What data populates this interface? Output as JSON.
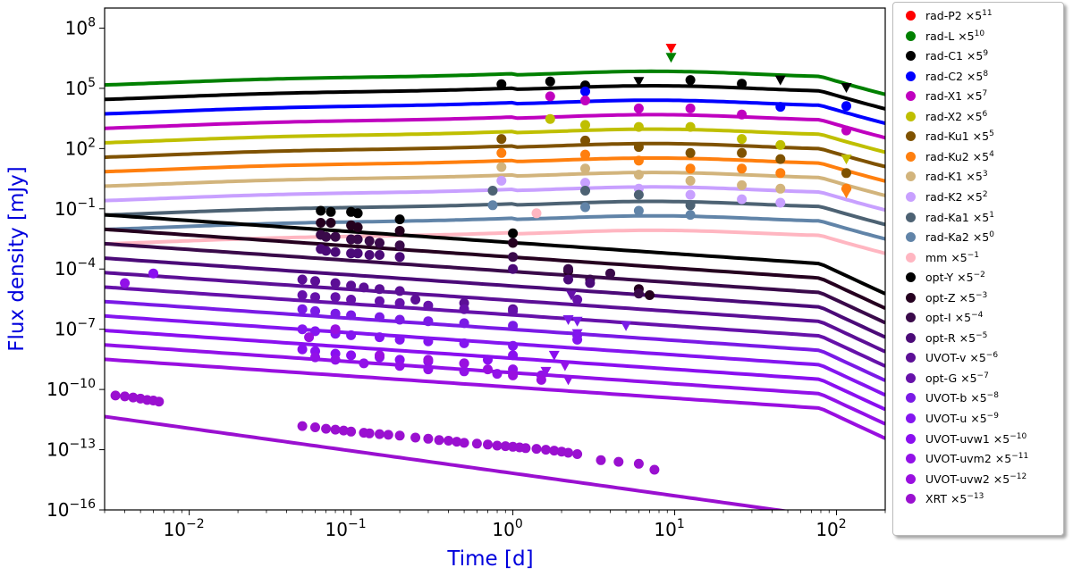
{
  "chart_data": {
    "type": "scatter",
    "xlabel": "Time [d]",
    "ylabel": "Flux density [mJy]",
    "xscale": "log",
    "yscale": "log",
    "xlim": [
      0.003,
      200
    ],
    "ylim": [
      1e-16,
      1000000000.0
    ],
    "xticks": [
      {
        "value": 0.01,
        "mant": "10",
        "exp": "−2"
      },
      {
        "value": 0.1,
        "mant": "10",
        "exp": "−1"
      },
      {
        "value": 1,
        "mant": "10",
        "exp": "0"
      },
      {
        "value": 10,
        "mant": "10",
        "exp": "1"
      },
      {
        "value": 100,
        "mant": "10",
        "exp": "2"
      }
    ],
    "yticks": [
      {
        "value": 1e-16,
        "mant": "10",
        "exp": "−16"
      },
      {
        "value": 1e-13,
        "mant": "10",
        "exp": "−13"
      },
      {
        "value": 1e-10,
        "mant": "10",
        "exp": "−10"
      },
      {
        "value": 1e-07,
        "mant": "10",
        "exp": "−7"
      },
      {
        "value": 0.0001,
        "mant": "10",
        "exp": "−4"
      },
      {
        "value": 0.1,
        "mant": "10",
        "exp": "−1"
      },
      {
        "value": 100,
        "mant": "10",
        "exp": "2"
      },
      {
        "value": 100000,
        "mant": "10",
        "exp": "5"
      },
      {
        "value": 100000000,
        "mant": "10",
        "exp": "8"
      }
    ],
    "legend_position": "outside-right",
    "series": [
      {
        "name": "rad-P2",
        "factor": "5",
        "exp": "11",
        "color": "#ff0000",
        "model": false,
        "points": [],
        "upper_limits": [
          [
            9.5,
            10000000.0
          ]
        ]
      },
      {
        "name": "rad-L",
        "factor": "5",
        "exp": "10",
        "color": "#008000",
        "model": true,
        "points": [],
        "upper_limits": [
          [
            9.5,
            3500000.0
          ]
        ]
      },
      {
        "name": "rad-C1",
        "factor": "5",
        "exp": "9",
        "color": "#000000",
        "model": true,
        "points": [
          [
            0.85,
            160000.0
          ],
          [
            1.7,
            220000.0
          ],
          [
            2.8,
            140000.0
          ],
          [
            12.5,
            260000.0
          ],
          [
            26,
            170000.0
          ]
        ],
        "upper_limits": [
          [
            6,
            220000.0
          ],
          [
            45,
            260000.0
          ],
          [
            115,
            110000.0
          ]
        ]
      },
      {
        "name": "rad-C2",
        "factor": "5",
        "exp": "8",
        "color": "#0000ff",
        "model": true,
        "points": [
          [
            2.8,
            70000.0
          ],
          [
            45,
            12000.0
          ],
          [
            115,
            13000.0
          ]
        ],
        "upper_limits": []
      },
      {
        "name": "rad-X1",
        "factor": "5",
        "exp": "7",
        "color": "#bf00bf",
        "model": true,
        "points": [
          [
            1.7,
            40000.0
          ],
          [
            2.8,
            25000.0
          ],
          [
            6,
            10000.0
          ],
          [
            12.5,
            10000.0
          ],
          [
            26,
            5000.0
          ],
          [
            115,
            800.0
          ]
        ],
        "upper_limits": []
      },
      {
        "name": "rad-X2",
        "factor": "5",
        "exp": "6",
        "color": "#bfbf00",
        "model": true,
        "points": [
          [
            1.7,
            3000.0
          ],
          [
            2.8,
            1500.0
          ],
          [
            6,
            1200.0
          ],
          [
            12.5,
            1200.0
          ],
          [
            26,
            300.0
          ],
          [
            45,
            150.0
          ]
        ],
        "upper_limits": [
          [
            115,
            30.0
          ]
        ]
      },
      {
        "name": "rad-Ku1",
        "factor": "5",
        "exp": "5",
        "color": "#7f5200",
        "model": true,
        "points": [
          [
            0.85,
            300.0
          ],
          [
            2.8,
            250.0
          ],
          [
            6,
            120.0
          ],
          [
            12.5,
            60.0
          ],
          [
            26,
            60.0
          ],
          [
            45,
            30.0
          ],
          [
            115,
            6
          ]
        ],
        "upper_limits": []
      },
      {
        "name": "rad-Ku2",
        "factor": "5",
        "exp": "4",
        "color": "#ff7f0e",
        "model": true,
        "points": [
          [
            0.85,
            60.0
          ],
          [
            2.8,
            50.0
          ],
          [
            6,
            25.0
          ],
          [
            12.5,
            10.0
          ],
          [
            26,
            10.0
          ],
          [
            45,
            6
          ],
          [
            115,
            1
          ]
        ],
        "upper_limits": [
          [
            115,
            0.6
          ]
        ]
      },
      {
        "name": "rad-K1",
        "factor": "5",
        "exp": "3",
        "color": "#d2b47c",
        "model": true,
        "points": [
          [
            0.85,
            12.0
          ],
          [
            2.8,
            10.0
          ],
          [
            6,
            5
          ],
          [
            12.5,
            2.5
          ],
          [
            26,
            1.5
          ],
          [
            45,
            1
          ]
        ],
        "upper_limits": []
      },
      {
        "name": "rad-K2",
        "factor": "5",
        "exp": "2",
        "color": "#c8a0ff",
        "model": true,
        "points": [
          [
            0.85,
            2.5
          ],
          [
            2.8,
            2
          ],
          [
            6,
            1
          ],
          [
            12.5,
            0.5
          ],
          [
            26,
            0.3
          ],
          [
            45,
            0.2
          ]
        ],
        "upper_limits": []
      },
      {
        "name": "rad-Ka1",
        "factor": "5",
        "exp": "1",
        "color": "#4d6273",
        "model": true,
        "points": [
          [
            0.75,
            0.8
          ],
          [
            2.8,
            0.8
          ],
          [
            6,
            0.5
          ],
          [
            12.5,
            0.15
          ]
        ],
        "upper_limits": []
      },
      {
        "name": "rad-Ka2",
        "factor": "5",
        "exp": "0",
        "color": "#6184a8",
        "model": true,
        "points": [
          [
            0.75,
            0.15
          ],
          [
            2.8,
            0.12
          ],
          [
            6,
            0.08
          ],
          [
            12.5,
            0.05
          ]
        ],
        "upper_limits": []
      },
      {
        "name": "mm",
        "factor": "5",
        "exp": "−1",
        "color": "#ffb6c1",
        "model": true,
        "points": [
          [
            1.4,
            0.06
          ]
        ],
        "upper_limits": []
      },
      {
        "name": "opt-Y",
        "factor": "5",
        "exp": "−2",
        "color": "#000000",
        "model": true,
        "points": [
          [
            0.065,
            0.08
          ],
          [
            0.075,
            0.07
          ],
          [
            0.1,
            0.07
          ],
          [
            0.11,
            0.06
          ],
          [
            0.2,
            0.03
          ],
          [
            1.0,
            0.006
          ]
        ],
        "upper_limits": []
      },
      {
        "name": "opt-Z",
        "factor": "5",
        "exp": "−3",
        "color": "#25001f",
        "model": true,
        "points": [
          [
            0.065,
            0.02
          ],
          [
            0.075,
            0.02
          ],
          [
            0.1,
            0.015
          ],
          [
            0.11,
            0.012
          ],
          [
            0.2,
            0.008
          ],
          [
            1.0,
            0.002
          ],
          [
            2.2,
            8e-05
          ],
          [
            6,
            1e-05
          ],
          [
            7,
            5e-06
          ]
        ],
        "upper_limits": []
      },
      {
        "name": "opt-I",
        "factor": "5",
        "exp": "−4",
        "color": "#3a0a4a",
        "model": true,
        "points": [
          [
            0.065,
            0.005
          ],
          [
            0.07,
            0.004
          ],
          [
            0.08,
            0.004
          ],
          [
            0.1,
            0.003
          ],
          [
            0.11,
            0.003
          ],
          [
            0.13,
            0.0025
          ],
          [
            0.15,
            0.002
          ],
          [
            0.2,
            0.0015
          ],
          [
            1.0,
            0.0004
          ],
          [
            2.2,
            0.0001
          ],
          [
            3,
            3e-05
          ],
          [
            4,
            6e-05
          ],
          [
            6,
            6e-06
          ]
        ],
        "upper_limits": []
      },
      {
        "name": "opt-R",
        "factor": "5",
        "exp": "−5",
        "color": "#4b0a78",
        "model": true,
        "points": [
          [
            0.065,
            0.001
          ],
          [
            0.07,
            0.0008
          ],
          [
            0.08,
            0.0007
          ],
          [
            0.1,
            0.0006
          ],
          [
            0.11,
            0.0006
          ],
          [
            0.13,
            0.0005
          ],
          [
            0.15,
            0.0005
          ],
          [
            0.2,
            0.0004
          ],
          [
            1.0,
            0.0001
          ],
          [
            2.2,
            3e-05
          ],
          [
            3,
            2e-05
          ]
        ],
        "upper_limits": []
      },
      {
        "name": "UVOT-v",
        "factor": "5",
        "exp": "−6",
        "color": "#5c0f96",
        "model": true,
        "points": [
          [
            0.05,
            3e-05
          ],
          [
            0.06,
            2.5e-05
          ],
          [
            0.08,
            2e-05
          ],
          [
            0.1,
            1.5e-05
          ],
          [
            0.12,
            1.2e-05
          ],
          [
            0.15,
            1e-05
          ],
          [
            0.2,
            8e-06
          ],
          [
            0.25,
            3e-06
          ],
          [
            0.5,
            2e-06
          ],
          [
            1.0,
            1e-06
          ]
        ],
        "upper_limits": []
      },
      {
        "name": "opt-G",
        "factor": "5",
        "exp": "−7",
        "color": "#6611aa",
        "model": true,
        "points": [
          [
            0.05,
            5e-06
          ],
          [
            0.06,
            4e-06
          ],
          [
            0.08,
            4e-06
          ],
          [
            0.1,
            3e-06
          ],
          [
            0.15,
            2.5e-06
          ],
          [
            0.2,
            2e-06
          ],
          [
            0.3,
            1.5e-06
          ],
          [
            0.5,
            1e-06
          ],
          [
            1.0,
            8e-07
          ],
          [
            2.5,
            3e-06
          ]
        ],
        "upper_limits": [
          [
            2.3,
            5e-06
          ]
        ]
      },
      {
        "name": "UVOT-b",
        "factor": "5",
        "exp": "−8",
        "color": "#7a1ae6",
        "model": true,
        "points": [
          [
            0.05,
            1e-06
          ],
          [
            0.06,
            8e-07
          ],
          [
            0.08,
            6e-07
          ],
          [
            0.1,
            5e-07
          ],
          [
            0.15,
            4e-07
          ],
          [
            0.2,
            3e-07
          ],
          [
            0.3,
            2.5e-07
          ],
          [
            0.5,
            2e-07
          ],
          [
            1.0,
            1.5e-07
          ],
          [
            2.5,
            5e-08
          ]
        ],
        "upper_limits": [
          [
            2.2,
            3e-07
          ],
          [
            2.5,
            2.5e-07
          ],
          [
            5,
            1.5e-07
          ]
        ]
      },
      {
        "name": "UVOT-u",
        "factor": "5",
        "exp": "−9",
        "color": "#8415f0",
        "model": true,
        "points": [
          [
            0.05,
            1e-07
          ],
          [
            0.06,
            8e-08
          ],
          [
            0.08,
            6e-08
          ],
          [
            0.1,
            5e-08
          ],
          [
            0.15,
            4e-08
          ],
          [
            0.2,
            3e-08
          ],
          [
            0.3,
            2.5e-08
          ],
          [
            0.5,
            2e-08
          ],
          [
            1.0,
            1.5e-08
          ],
          [
            2.5,
            3e-08
          ]
        ],
        "upper_limits": [
          [
            2.5,
            6e-08
          ]
        ]
      },
      {
        "name": "UVOT-uvw1",
        "factor": "5",
        "exp": "−10",
        "color": "#8a0ff0",
        "model": true,
        "points": [
          [
            0.006,
            6e-05
          ],
          [
            0.05,
            1e-08
          ],
          [
            0.06,
            8e-09
          ],
          [
            0.08,
            6e-09
          ],
          [
            0.1,
            5e-09
          ],
          [
            0.15,
            4e-09
          ],
          [
            0.2,
            3e-09
          ],
          [
            0.3,
            2.5e-09
          ],
          [
            0.5,
            2e-09
          ],
          [
            0.7,
            3e-09
          ],
          [
            1.0,
            5e-09
          ]
        ],
        "upper_limits": [
          [
            1.8,
            5e-09
          ]
        ]
      },
      {
        "name": "UVOT-uvm2",
        "factor": "5",
        "exp": "−11",
        "color": "#9211e8",
        "model": true,
        "points": [
          [
            0.004,
            2e-05
          ],
          [
            0.06,
            4e-09
          ],
          [
            0.08,
            3e-09
          ],
          [
            0.12,
            2e-09
          ],
          [
            0.2,
            1.5e-09
          ],
          [
            0.3,
            1e-09
          ],
          [
            0.5,
            8e-10
          ],
          [
            0.8,
            6e-10
          ],
          [
            1.0,
            1e-09
          ],
          [
            1.5,
            5e-10
          ]
        ],
        "upper_limits": [
          [
            1.6,
            8e-10
          ],
          [
            2.1,
            1.5e-09
          ],
          [
            2.2,
            3e-10
          ]
        ]
      },
      {
        "name": "UVOT-uvw2",
        "factor": "5",
        "exp": "−12",
        "color": "#990fe0",
        "model": true,
        "points": [
          [
            0.055,
            4e-08
          ],
          [
            0.08,
            1e-07
          ],
          [
            0.15,
            5e-09
          ],
          [
            0.3,
            3e-09
          ],
          [
            0.5,
            2e-09
          ],
          [
            0.7,
            1e-09
          ],
          [
            1.0,
            5e-10
          ],
          [
            1.5,
            3e-10
          ]
        ],
        "upper_limits": []
      },
      {
        "name": "XRT",
        "factor": "5",
        "exp": "−13",
        "color": "#9a10d0",
        "model": true,
        "points": [
          [
            0.0035,
            5e-11
          ],
          [
            0.004,
            4.5e-11
          ],
          [
            0.0045,
            4e-11
          ],
          [
            0.005,
            3.5e-11
          ],
          [
            0.0055,
            3e-11
          ],
          [
            0.006,
            2.8e-11
          ],
          [
            0.0065,
            2.5e-11
          ],
          [
            0.05,
            1.5e-12
          ],
          [
            0.06,
            1.3e-12
          ],
          [
            0.07,
            1.1e-12
          ],
          [
            0.08,
            1e-12
          ],
          [
            0.09,
            9e-13
          ],
          [
            0.1,
            8e-13
          ],
          [
            0.12,
            7e-13
          ],
          [
            0.13,
            6.5e-13
          ],
          [
            0.15,
            6e-13
          ],
          [
            0.17,
            5.5e-13
          ],
          [
            0.2,
            5e-13
          ],
          [
            0.25,
            4e-13
          ],
          [
            0.3,
            3.5e-13
          ],
          [
            0.35,
            3e-13
          ],
          [
            0.4,
            2.8e-13
          ],
          [
            0.45,
            2.5e-13
          ],
          [
            0.5,
            2.2e-13
          ],
          [
            0.6,
            2e-13
          ],
          [
            0.7,
            1.8e-13
          ],
          [
            0.8,
            1.6e-13
          ],
          [
            0.9,
            1.5e-13
          ],
          [
            1.0,
            1.4e-13
          ],
          [
            1.1,
            1.3e-13
          ],
          [
            1.2,
            1.2e-13
          ],
          [
            1.4,
            1.1e-13
          ],
          [
            1.6,
            1e-13
          ],
          [
            1.8,
            9e-14
          ],
          [
            2.0,
            8e-14
          ],
          [
            2.2,
            7e-14
          ],
          [
            2.5,
            6e-14
          ],
          [
            3.5,
            3e-14
          ],
          [
            4.5,
            2.5e-14
          ],
          [
            6,
            2e-14
          ],
          [
            7.5,
            1e-14
          ]
        ],
        "upper_limits": []
      }
    ]
  }
}
